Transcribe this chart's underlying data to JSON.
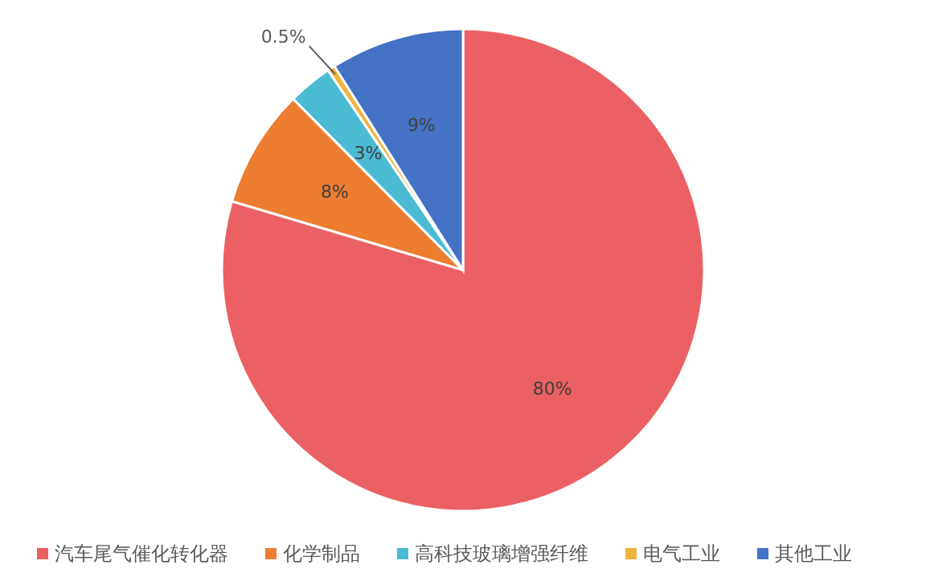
{
  "chart_data": {
    "type": "pie",
    "categories": [
      "汽车尾气催化转化器",
      "化学制品",
      "高科技玻璃增强纤维",
      "电气工业",
      "其他工业"
    ],
    "values": [
      80,
      8,
      3,
      0.5,
      9
    ],
    "colors": [
      "#eb6063",
      "#ed7d31",
      "#4bbad3",
      "#f0b33b",
      "#4472c4"
    ],
    "value_labels": [
      "80%",
      "8%",
      "3%",
      "0.5%",
      "9%"
    ],
    "legend": "bottom"
  }
}
